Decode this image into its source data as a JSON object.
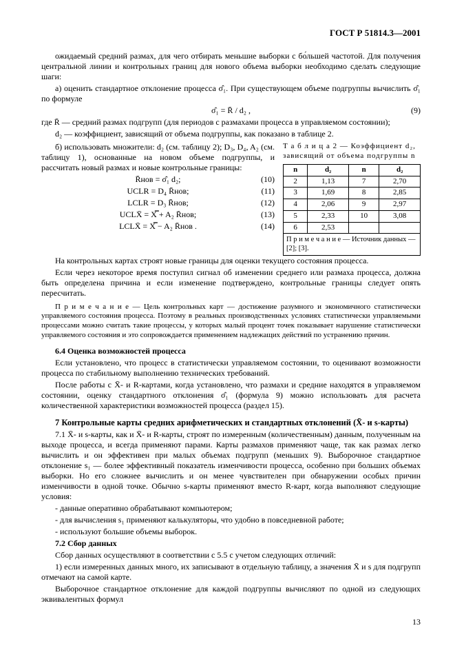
{
  "header": "ГОСТ Р 51814.3—2001",
  "para1": "ожидаемый средний размах, для чего отбирать меньшие выборки с бо́льшей частотой. Для получения центральной линии и контрольных границ для нового объема выборки необходимо сделать следующие шаги:",
  "item_a": "а) оценить стандартное отклонение процесса σ̂₁. При существующем объеме подгруппы вычислить σ̂₁ по формуле",
  "eq9": "σ̂₁ = R̄ / d₂ ,",
  "eq9n": "(9)",
  "where1": "где R̄ — средний размах подгрупп (для периодов с размахами процесса в управляемом состоянии);",
  "where2": "d₂ — коэффициент, зависящий от объема подгруппы, как показано в таблице 2.",
  "item_b": "б) использовать множители: d₂ (см. таблицу 2); D₃, D₄, A₂ (см. таблицу 1), основанные на новом объеме подгруппы, и рассчитать новый размах и новые контрольные границы:",
  "eq10": "R̄нов = σ̂₁ d₂;",
  "eq10n": "(10)",
  "eq11": "UCLR = D₄ R̄нов;",
  "eq11n": "(11)",
  "eq12": "LCLR = D₃ R̄нов;",
  "eq12n": "(12)",
  "eq13": "UCLX̄ = X̿ + A₂ R̄нов;",
  "eq13n": "(13)",
  "eq14": "LCLX̄ = X̿ − A₂ R̄нов .",
  "eq14n": "(14)",
  "table_caption": "Т а б л и ц а  2 — Коэффициент d₂, зависящий от объема подгруппы n",
  "thead": [
    "n",
    "d₂",
    "n",
    "d₂"
  ],
  "rows": [
    [
      "2",
      "1,13",
      "7",
      "2,70"
    ],
    [
      "3",
      "1,69",
      "8",
      "2,85"
    ],
    [
      "4",
      "2,06",
      "9",
      "2,97"
    ],
    [
      "5",
      "2,33",
      "10",
      "3,08"
    ],
    [
      "6",
      "2,53",
      "",
      ""
    ]
  ],
  "tfoot": "П р и м е ч а н и е — Источник данных — [2]; [3].",
  "p_after1": "На контрольных картах строят новые границы для оценки текущего состояния процесса.",
  "p_after2": "Если через некоторое время поступил сигнал об изменении среднего или размаха процесса, должна быть определена причина и если изменение подтверждено, контрольные границы следует опять пересчитать.",
  "note1": "П р и м е ч а н и е — Цель контрольных карт — достижение разумного и экономичного статистически управляемого состояния процесса. Поэтому в реальных производственных условиях статистически управляемыми процессами можно считать такие процессы, у которых малый процент точек показывает нарушение статистически управляемого состояния и это сопровождается применением надлежащих действий по устранению причин.",
  "sec64_head": "6.4 Оценка возможностей процесса",
  "sec64_p1": "Если установлено, что процесс в статистически управляемом состоянии, то оценивают возможности процесса по стабильному выполнению технических требований.",
  "sec64_p2": "После работы с X̄- и R-картами, когда установлено, что размахи и средние находятся в управляемом состоянии, оценку стандартного отклонения σ̂₁ (формула 9) можно использовать для расчета количественной характеристики возможностей процесса (раздел 15).",
  "sec7_head": "7 Контрольные карты средних арифметических и стандартных отклонений (X̄- и s-карты)",
  "sec7_p1": "7.1 X̄- и s-карты, как и X̄- и R-карты, строят по измеренным (количественным) данным, полученным на выходе процесса, и всегда применяют парами. Карты размахов применяют чаще, так как размах легко вычислить и он эффективен при малых объемах подгрупп (меньших 9). Выборочное стандартное отклонение s₁ — более эффективный показатель изменчивости процесса, особенно при больших объемах выборки. Но его сложнее вычислить и он менее чувствителен при обнаружении особых причин изменчивости в одной точке. Обычно s-карты применяют вместо R-карт, когда выполняют следующие условия:",
  "bul1": "- данные оперативно обрабатывают компьютером;",
  "bul2": "- для вычисления s₁ применяют калькуляторы, что удобно в повседневной работе;",
  "bul3": "- используют большие объемы выборок.",
  "sec72_head": "7.2 Сбор данных",
  "sec72_p1": "Сбор данных осуществляют в соответствии с 5.5 с учетом следующих отличий:",
  "sec72_p2": "1) если измеренных данных много, их записывают в отдельную таблицу, а значения X̄ и s для подгрупп отмечают на самой карте.",
  "sec72_p3": "Выборочное стандартное отклонение для каждой подгруппы вычисляют по одной из следующих эквивалентных формул",
  "pagenum": "13"
}
